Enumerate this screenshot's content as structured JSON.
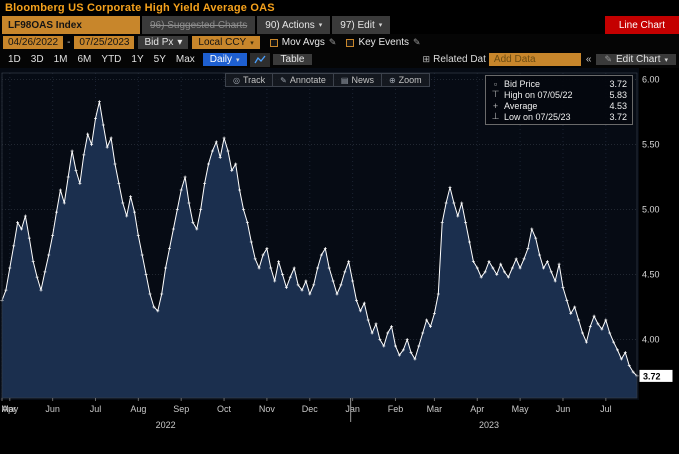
{
  "header": {
    "title": "Bloomberg US Corporate High Yield Average OAS"
  },
  "menubar": {
    "ticker": "LF98OAS Index",
    "suggested_label": "96) Suggested Charts",
    "actions_label": "90) Actions",
    "edit_label": "97) Edit",
    "view_banner": "Line Chart"
  },
  "toolbar": {
    "date_from": "04/26/2022",
    "date_to": "07/25/2023",
    "price_source": "Bid Px",
    "currency": "Local CCY",
    "mov_avgs_label": "Mov Avgs",
    "key_events_label": "Key Events"
  },
  "rangebar": {
    "ranges": [
      "1D",
      "3D",
      "1M",
      "6M",
      "YTD",
      "1Y",
      "5Y",
      "Max"
    ],
    "frequency": "Daily",
    "table_label": "Table",
    "related_label": "Related Dat",
    "add_data_placeholder": "Add Data",
    "edit_chart_label": "Edit Chart"
  },
  "plot_toolbar": [
    {
      "id": "track",
      "label": "Track"
    },
    {
      "id": "annotate",
      "label": "Annotate"
    },
    {
      "id": "news",
      "label": "News"
    },
    {
      "id": "zoom",
      "label": "Zoom"
    }
  ],
  "legend": [
    {
      "id": "bid",
      "label": "Bid Price",
      "value": "3.72"
    },
    {
      "id": "high",
      "label": "High on 07/05/22",
      "value": "5.83"
    },
    {
      "id": "avg",
      "label": "Average",
      "value": "4.53"
    },
    {
      "id": "low",
      "label": "Low on 07/25/23",
      "value": "3.72"
    }
  ],
  "chart_data": {
    "type": "line",
    "title": "Bloomberg US Corporate High Yield Average OAS",
    "series_name": "Bid Price",
    "x_start": "04/26/2022",
    "x_end": "07/25/2023",
    "ylim": [
      3.55,
      6.05
    ],
    "yticks": [
      4.0,
      4.5,
      5.0,
      5.5,
      6.0
    ],
    "last_value": "3.72",
    "high": {
      "date": "07/05/22",
      "value": 5.83
    },
    "low": {
      "date": "07/25/23",
      "value": 3.72
    },
    "average": 4.53,
    "line_color": "#ffffff",
    "fill_color": "#1b2f4e",
    "values": [
      4.3,
      4.38,
      4.55,
      4.72,
      4.9,
      4.85,
      4.95,
      4.78,
      4.6,
      4.48,
      4.38,
      4.52,
      4.65,
      4.8,
      4.98,
      5.15,
      5.05,
      5.25,
      5.45,
      5.3,
      5.2,
      5.42,
      5.58,
      5.5,
      5.7,
      5.83,
      5.65,
      5.48,
      5.55,
      5.35,
      5.2,
      5.05,
      4.95,
      5.1,
      4.98,
      4.8,
      4.65,
      4.5,
      4.35,
      4.25,
      4.22,
      4.35,
      4.55,
      4.7,
      4.85,
      5.0,
      5.15,
      5.25,
      5.05,
      4.9,
      4.85,
      5.0,
      5.2,
      5.35,
      5.45,
      5.52,
      5.4,
      5.55,
      5.45,
      5.3,
      5.35,
      5.15,
      5.0,
      4.9,
      4.75,
      4.62,
      4.55,
      4.65,
      4.7,
      4.55,
      4.45,
      4.6,
      4.5,
      4.4,
      4.48,
      4.55,
      4.42,
      4.38,
      4.45,
      4.35,
      4.42,
      4.55,
      4.65,
      4.7,
      4.55,
      4.45,
      4.35,
      4.42,
      4.52,
      4.6,
      4.45,
      4.3,
      4.22,
      4.28,
      4.15,
      4.05,
      4.12,
      4.0,
      3.95,
      4.05,
      4.1,
      3.95,
      3.88,
      3.92,
      4.0,
      3.9,
      3.85,
      3.95,
      4.05,
      4.15,
      4.1,
      4.2,
      4.35,
      4.9,
      5.05,
      5.17,
      5.05,
      4.95,
      5.05,
      4.9,
      4.75,
      4.6,
      4.55,
      4.48,
      4.52,
      4.6,
      4.55,
      4.5,
      4.58,
      4.52,
      4.48,
      4.55,
      4.62,
      4.55,
      4.62,
      4.7,
      4.85,
      4.78,
      4.65,
      4.55,
      4.6,
      4.52,
      4.45,
      4.58,
      4.4,
      4.3,
      4.2,
      4.25,
      4.15,
      4.05,
      3.98,
      4.1,
      4.18,
      4.12,
      4.08,
      4.15,
      4.05,
      3.98,
      3.92,
      3.85,
      3.9,
      3.8,
      3.75,
      3.72
    ],
    "month_ticks": [
      {
        "label": "Apr",
        "idx": 0
      },
      {
        "label": "May",
        "idx": 2
      },
      {
        "label": "Jun",
        "idx": 13
      },
      {
        "label": "Jul",
        "idx": 24
      },
      {
        "label": "Aug",
        "idx": 35
      },
      {
        "label": "Sep",
        "idx": 46
      },
      {
        "label": "Oct",
        "idx": 57
      },
      {
        "label": "Nov",
        "idx": 68
      },
      {
        "label": "Dec",
        "idx": 79
      },
      {
        "label": "Jan",
        "idx": 90
      },
      {
        "label": "Feb",
        "idx": 101
      },
      {
        "label": "Mar",
        "idx": 111
      },
      {
        "label": "Apr",
        "idx": 122
      },
      {
        "label": "May",
        "idx": 133
      },
      {
        "label": "Jun",
        "idx": 144
      },
      {
        "label": "Jul",
        "idx": 155
      }
    ],
    "year_ticks": [
      {
        "label": "2022",
        "idx": 42
      },
      {
        "label": "2023",
        "idx": 125
      }
    ],
    "year_break_idx": 89.5
  }
}
